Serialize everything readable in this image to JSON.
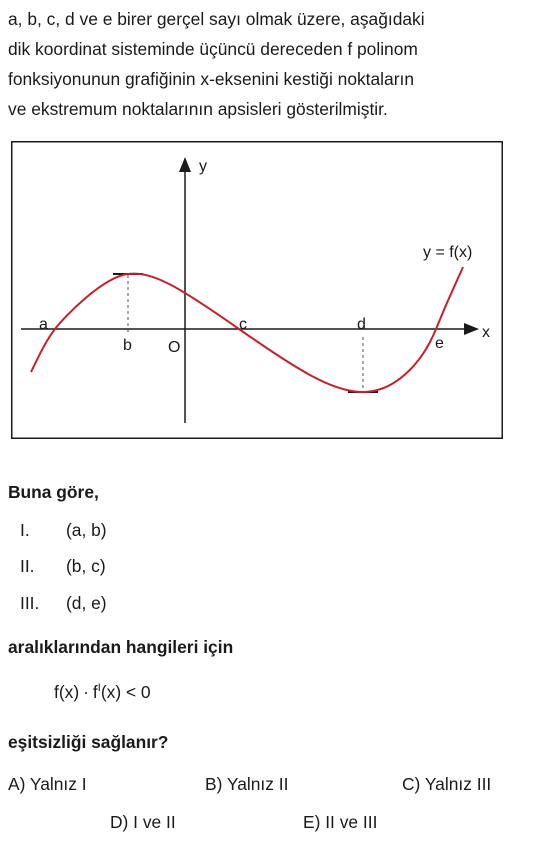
{
  "question": {
    "intro_lines": [
      "a, b, c, d ve e birer gerçel sayı olmak üzere, aşağıdaki",
      "dik koordinat sisteminde üçüncü dereceden f polinom",
      "fonksiyonunun grafiğinin x-eksenini kestiği noktaların",
      "ve ekstremum noktalarının apsisleri gösterilmiştir."
    ],
    "prompt": "Buna göre,",
    "statements": [
      {
        "num": "I.",
        "text": "(a, b)"
      },
      {
        "num": "II.",
        "text": "(b, c)"
      },
      {
        "num": "III.",
        "text": "(d, e)"
      }
    ],
    "ask": "aralıklarından hangileri için",
    "inequality": {
      "left": "f(x)",
      "dot": "·",
      "fprime": "f",
      "prime": "I",
      "right": "(x) < 0"
    },
    "ending": "eşitsizliği sağlanır?",
    "options": [
      {
        "label": "A) Yalnız I"
      },
      {
        "label": "B) Yalnız II"
      },
      {
        "label": "C) Yalnız III"
      },
      {
        "label": "D) I ve II"
      },
      {
        "label": "E) II ve III"
      }
    ]
  },
  "graph": {
    "curve_color": "#c8202a",
    "axis_color": "#1a1a1a",
    "labels": {
      "y_axis": "y",
      "x_axis": "x",
      "origin": "O",
      "function": "y = f(x)",
      "a": "a",
      "b": "b",
      "c": "c",
      "d": "d",
      "e": "e"
    }
  }
}
